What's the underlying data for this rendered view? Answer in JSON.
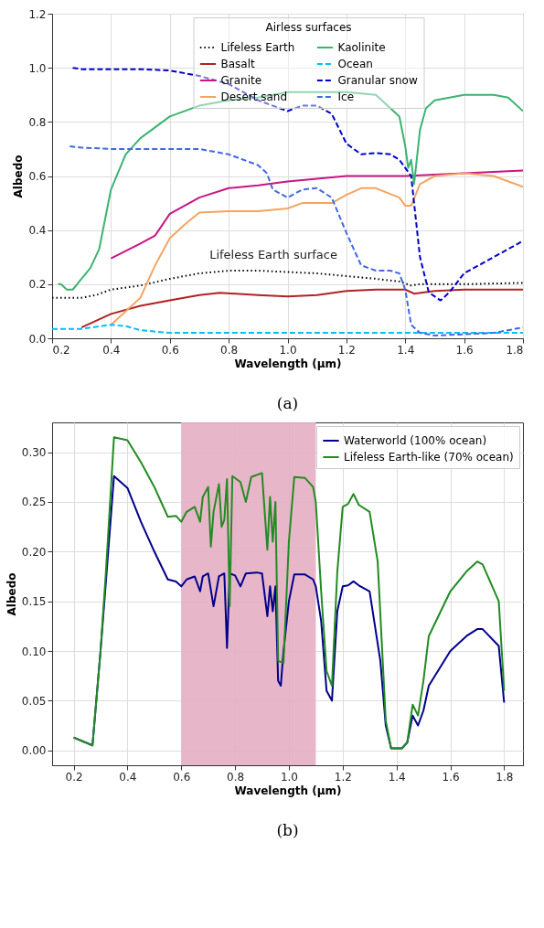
{
  "chart_data": [
    {
      "type": "line",
      "xlabel": "Wavelength (μm)",
      "ylabel": "Albedo",
      "legend_title": "Airless surfaces",
      "legend": "top",
      "grid": true,
      "xlim": [
        0.2,
        1.8
      ],
      "ylim": [
        0.0,
        1.2
      ],
      "xticks": [
        {
          "value": 0.2,
          "label": "0.2"
        },
        {
          "value": 0.4,
          "label": "0.4"
        },
        {
          "value": 0.6,
          "label": "0.6"
        },
        {
          "value": 0.8,
          "label": "0.8"
        },
        {
          "value": 1.0,
          "label": "1.0"
        },
        {
          "value": 1.2,
          "label": "1.2"
        },
        {
          "value": 1.4,
          "label": "1.4"
        },
        {
          "value": 1.6,
          "label": "1.6"
        },
        {
          "value": 1.8,
          "label": "1.8"
        }
      ],
      "yticks": [
        {
          "value": 0.0,
          "label": "0.0"
        },
        {
          "value": 0.2,
          "label": "0.2"
        },
        {
          "value": 0.4,
          "label": "0.4"
        },
        {
          "value": 0.6,
          "label": "0.6"
        },
        {
          "value": 0.8,
          "label": "0.8"
        },
        {
          "value": 1.0,
          "label": "1.0"
        },
        {
          "value": 1.2,
          "label": "1.2"
        }
      ],
      "annotations": [
        "Lifeless Earth surface",
        "(a)"
      ],
      "series": [
        {
          "name": "Lifeless Earth",
          "color": "#000000",
          "line_style": "dotted",
          "x": [
            0.2,
            0.3,
            0.35,
            0.4,
            0.5,
            0.6,
            0.7,
            0.8,
            0.9,
            1.0,
            1.1,
            1.2,
            1.3,
            1.38,
            1.42,
            1.45,
            1.6,
            1.8
          ],
          "values": [
            0.15,
            0.15,
            0.16,
            0.18,
            0.195,
            0.22,
            0.24,
            0.25,
            0.25,
            0.245,
            0.24,
            0.23,
            0.22,
            0.21,
            0.195,
            0.2,
            0.2,
            0.205
          ]
        },
        {
          "name": "Basalt",
          "color": "#b22222",
          "line_style": "solid",
          "x": [
            0.3,
            0.4,
            0.5,
            0.6,
            0.7,
            0.77,
            0.9,
            1.0,
            1.1,
            1.2,
            1.3,
            1.4,
            1.43,
            1.5,
            1.6,
            1.8
          ],
          "values": [
            0.04,
            0.09,
            0.12,
            0.14,
            0.16,
            0.168,
            0.16,
            0.155,
            0.16,
            0.175,
            0.18,
            0.18,
            0.165,
            0.175,
            0.18,
            0.18
          ]
        },
        {
          "name": "Granite",
          "color": "#c71585",
          "line_style": "solid",
          "x": [
            0.4,
            0.5,
            0.55,
            0.6,
            0.7,
            0.8,
            0.9,
            1.0,
            1.1,
            1.2,
            1.3,
            1.4,
            1.5,
            1.6,
            1.7,
            1.8
          ],
          "values": [
            0.295,
            0.35,
            0.38,
            0.46,
            0.52,
            0.555,
            0.565,
            0.58,
            0.59,
            0.6,
            0.6,
            0.6,
            0.605,
            0.61,
            0.615,
            0.62
          ]
        },
        {
          "name": "Desert sand",
          "color": "#f4a460",
          "line_style": "solid",
          "x": [
            0.4,
            0.45,
            0.5,
            0.55,
            0.6,
            0.65,
            0.7,
            0.8,
            0.9,
            1.0,
            1.05,
            1.15,
            1.2,
            1.25,
            1.3,
            1.38,
            1.4,
            1.42,
            1.45,
            1.5,
            1.6,
            1.7,
            1.8
          ],
          "values": [
            0.05,
            0.1,
            0.15,
            0.27,
            0.37,
            0.42,
            0.465,
            0.47,
            0.47,
            0.48,
            0.5,
            0.5,
            0.53,
            0.555,
            0.555,
            0.52,
            0.49,
            0.49,
            0.57,
            0.6,
            0.61,
            0.6,
            0.56
          ]
        },
        {
          "name": "Kaolinite",
          "color": "#3cb371",
          "line_style": "solid",
          "x": [
            0.22,
            0.23,
            0.25,
            0.27,
            0.3,
            0.33,
            0.36,
            0.4,
            0.45,
            0.5,
            0.6,
            0.7,
            0.8,
            0.9,
            1.0,
            1.1,
            1.2,
            1.3,
            1.35,
            1.38,
            1.4,
            1.41,
            1.42,
            1.43,
            1.45,
            1.47,
            1.5,
            1.6,
            1.7,
            1.75,
            1.8
          ],
          "values": [
            0.2,
            0.2,
            0.18,
            0.18,
            0.22,
            0.26,
            0.33,
            0.55,
            0.68,
            0.74,
            0.82,
            0.86,
            0.88,
            0.89,
            0.91,
            0.91,
            0.91,
            0.9,
            0.85,
            0.82,
            0.71,
            0.63,
            0.66,
            0.57,
            0.77,
            0.85,
            0.88,
            0.9,
            0.9,
            0.89,
            0.84
          ]
        },
        {
          "name": "Ocean",
          "color": "#00bfff",
          "line_style": "dashed",
          "x": [
            0.2,
            0.3,
            0.4,
            0.45,
            0.5,
            0.6,
            0.8,
            1.8
          ],
          "values": [
            0.035,
            0.035,
            0.05,
            0.045,
            0.03,
            0.02,
            0.02,
            0.02
          ]
        },
        {
          "name": "Granular snow",
          "color": "#0000cd",
          "line_style": "dashed",
          "x": [
            0.27,
            0.3,
            0.4,
            0.5,
            0.6,
            0.7,
            0.8,
            0.9,
            1.0,
            1.05,
            1.1,
            1.15,
            1.2,
            1.25,
            1.3,
            1.35,
            1.38,
            1.4,
            1.42,
            1.45,
            1.48,
            1.52,
            1.55,
            1.6,
            1.7,
            1.8
          ],
          "values": [
            1.0,
            0.995,
            0.995,
            0.995,
            0.99,
            0.97,
            0.94,
            0.88,
            0.84,
            0.86,
            0.86,
            0.83,
            0.72,
            0.68,
            0.685,
            0.68,
            0.66,
            0.63,
            0.6,
            0.3,
            0.17,
            0.14,
            0.17,
            0.24,
            0.3,
            0.36
          ]
        },
        {
          "name": "Ice",
          "color": "#4169e1",
          "line_style": "dashed",
          "x": [
            0.26,
            0.3,
            0.4,
            0.5,
            0.6,
            0.7,
            0.8,
            0.85,
            0.9,
            0.93,
            0.95,
            1.0,
            1.05,
            1.1,
            1.15,
            1.2,
            1.25,
            1.3,
            1.35,
            1.38,
            1.4,
            1.42,
            1.45,
            1.5,
            1.6,
            1.7,
            1.8
          ],
          "values": [
            0.71,
            0.705,
            0.7,
            0.7,
            0.7,
            0.7,
            0.68,
            0.66,
            0.64,
            0.61,
            0.55,
            0.52,
            0.55,
            0.555,
            0.52,
            0.39,
            0.27,
            0.25,
            0.25,
            0.24,
            0.18,
            0.05,
            0.02,
            0.01,
            0.015,
            0.02,
            0.04
          ]
        }
      ]
    },
    {
      "type": "line",
      "xlabel": "Wavelength (μm)",
      "ylabel": "Albedo",
      "legend": "top right",
      "grid": true,
      "xlim": [
        0.12,
        1.87
      ],
      "ylim": [
        -0.015,
        0.33
      ],
      "xticks": [
        {
          "value": 0.2,
          "label": "0.2"
        },
        {
          "value": 0.4,
          "label": "0.4"
        },
        {
          "value": 0.6,
          "label": "0.6"
        },
        {
          "value": 0.8,
          "label": "0.8"
        },
        {
          "value": 1.0,
          "label": "1.0"
        },
        {
          "value": 1.2,
          "label": "1.2"
        },
        {
          "value": 1.4,
          "label": "1.4"
        },
        {
          "value": 1.6,
          "label": "1.6"
        },
        {
          "value": 1.8,
          "label": "1.8"
        }
      ],
      "yticks": [
        {
          "value": 0.0,
          "label": "0.00"
        },
        {
          "value": 0.05,
          "label": "0.05"
        },
        {
          "value": 0.1,
          "label": "0.10"
        },
        {
          "value": 0.15,
          "label": "0.15"
        },
        {
          "value": 0.2,
          "label": "0.20"
        },
        {
          "value": 0.25,
          "label": "0.25"
        },
        {
          "value": 0.3,
          "label": "0.30"
        }
      ],
      "bands": [
        {
          "axis": "x",
          "from": 0.6,
          "to": 1.1,
          "color": "#e6aec3"
        }
      ],
      "annotations": [
        "(b)"
      ],
      "series": [
        {
          "name": "Waterworld (100% ocean)",
          "color": "#00008b",
          "x": [
            0.2,
            0.27,
            0.3,
            0.32,
            0.35,
            0.4,
            0.45,
            0.5,
            0.55,
            0.58,
            0.6,
            0.62,
            0.65,
            0.67,
            0.68,
            0.7,
            0.72,
            0.74,
            0.76,
            0.77,
            0.78,
            0.8,
            0.82,
            0.84,
            0.88,
            0.9,
            0.92,
            0.93,
            0.94,
            0.95,
            0.96,
            0.97,
            0.98,
            1.0,
            1.02,
            1.06,
            1.09,
            1.1,
            1.12,
            1.14,
            1.16,
            1.18,
            1.2,
            1.22,
            1.24,
            1.26,
            1.3,
            1.34,
            1.36,
            1.38,
            1.42,
            1.44,
            1.46,
            1.48,
            1.5,
            1.52,
            1.6,
            1.66,
            1.7,
            1.72,
            1.78,
            1.8
          ],
          "values": [
            0.013,
            0.005,
            0.1,
            0.17,
            0.276,
            0.264,
            0.23,
            0.2,
            0.172,
            0.17,
            0.165,
            0.172,
            0.175,
            0.16,
            0.175,
            0.178,
            0.145,
            0.175,
            0.178,
            0.103,
            0.178,
            0.176,
            0.165,
            0.178,
            0.179,
            0.178,
            0.135,
            0.165,
            0.14,
            0.165,
            0.07,
            0.065,
            0.1,
            0.15,
            0.177,
            0.177,
            0.172,
            0.165,
            0.13,
            0.06,
            0.05,
            0.14,
            0.165,
            0.166,
            0.17,
            0.166,
            0.16,
            0.09,
            0.025,
            0.002,
            0.002,
            0.008,
            0.035,
            0.025,
            0.04,
            0.065,
            0.1,
            0.115,
            0.122,
            0.122,
            0.105,
            0.048
          ]
        },
        {
          "name": "Lifeless Earth-like (70% ocean)",
          "color": "#228b22",
          "x": [
            0.2,
            0.27,
            0.3,
            0.32,
            0.35,
            0.4,
            0.45,
            0.5,
            0.55,
            0.58,
            0.6,
            0.62,
            0.65,
            0.67,
            0.68,
            0.7,
            0.71,
            0.72,
            0.74,
            0.75,
            0.76,
            0.77,
            0.78,
            0.79,
            0.82,
            0.84,
            0.86,
            0.9,
            0.92,
            0.93,
            0.94,
            0.95,
            0.96,
            0.98,
            1.0,
            1.02,
            1.06,
            1.09,
            1.1,
            1.12,
            1.14,
            1.16,
            1.18,
            1.2,
            1.22,
            1.24,
            1.26,
            1.3,
            1.33,
            1.36,
            1.38,
            1.42,
            1.44,
            1.46,
            1.48,
            1.5,
            1.52,
            1.6,
            1.66,
            1.7,
            1.72,
            1.78,
            1.8
          ],
          "values": [
            0.013,
            0.005,
            0.1,
            0.18,
            0.315,
            0.312,
            0.29,
            0.265,
            0.235,
            0.236,
            0.23,
            0.24,
            0.245,
            0.23,
            0.255,
            0.265,
            0.205,
            0.24,
            0.268,
            0.225,
            0.232,
            0.273,
            0.145,
            0.276,
            0.27,
            0.25,
            0.275,
            0.279,
            0.202,
            0.255,
            0.21,
            0.25,
            0.09,
            0.088,
            0.21,
            0.275,
            0.274,
            0.265,
            0.25,
            0.16,
            0.08,
            0.065,
            0.18,
            0.245,
            0.248,
            0.258,
            0.247,
            0.24,
            0.19,
            0.03,
            0.002,
            0.002,
            0.008,
            0.046,
            0.035,
            0.07,
            0.115,
            0.16,
            0.18,
            0.19,
            0.187,
            0.15,
            0.06
          ]
        }
      ]
    }
  ]
}
